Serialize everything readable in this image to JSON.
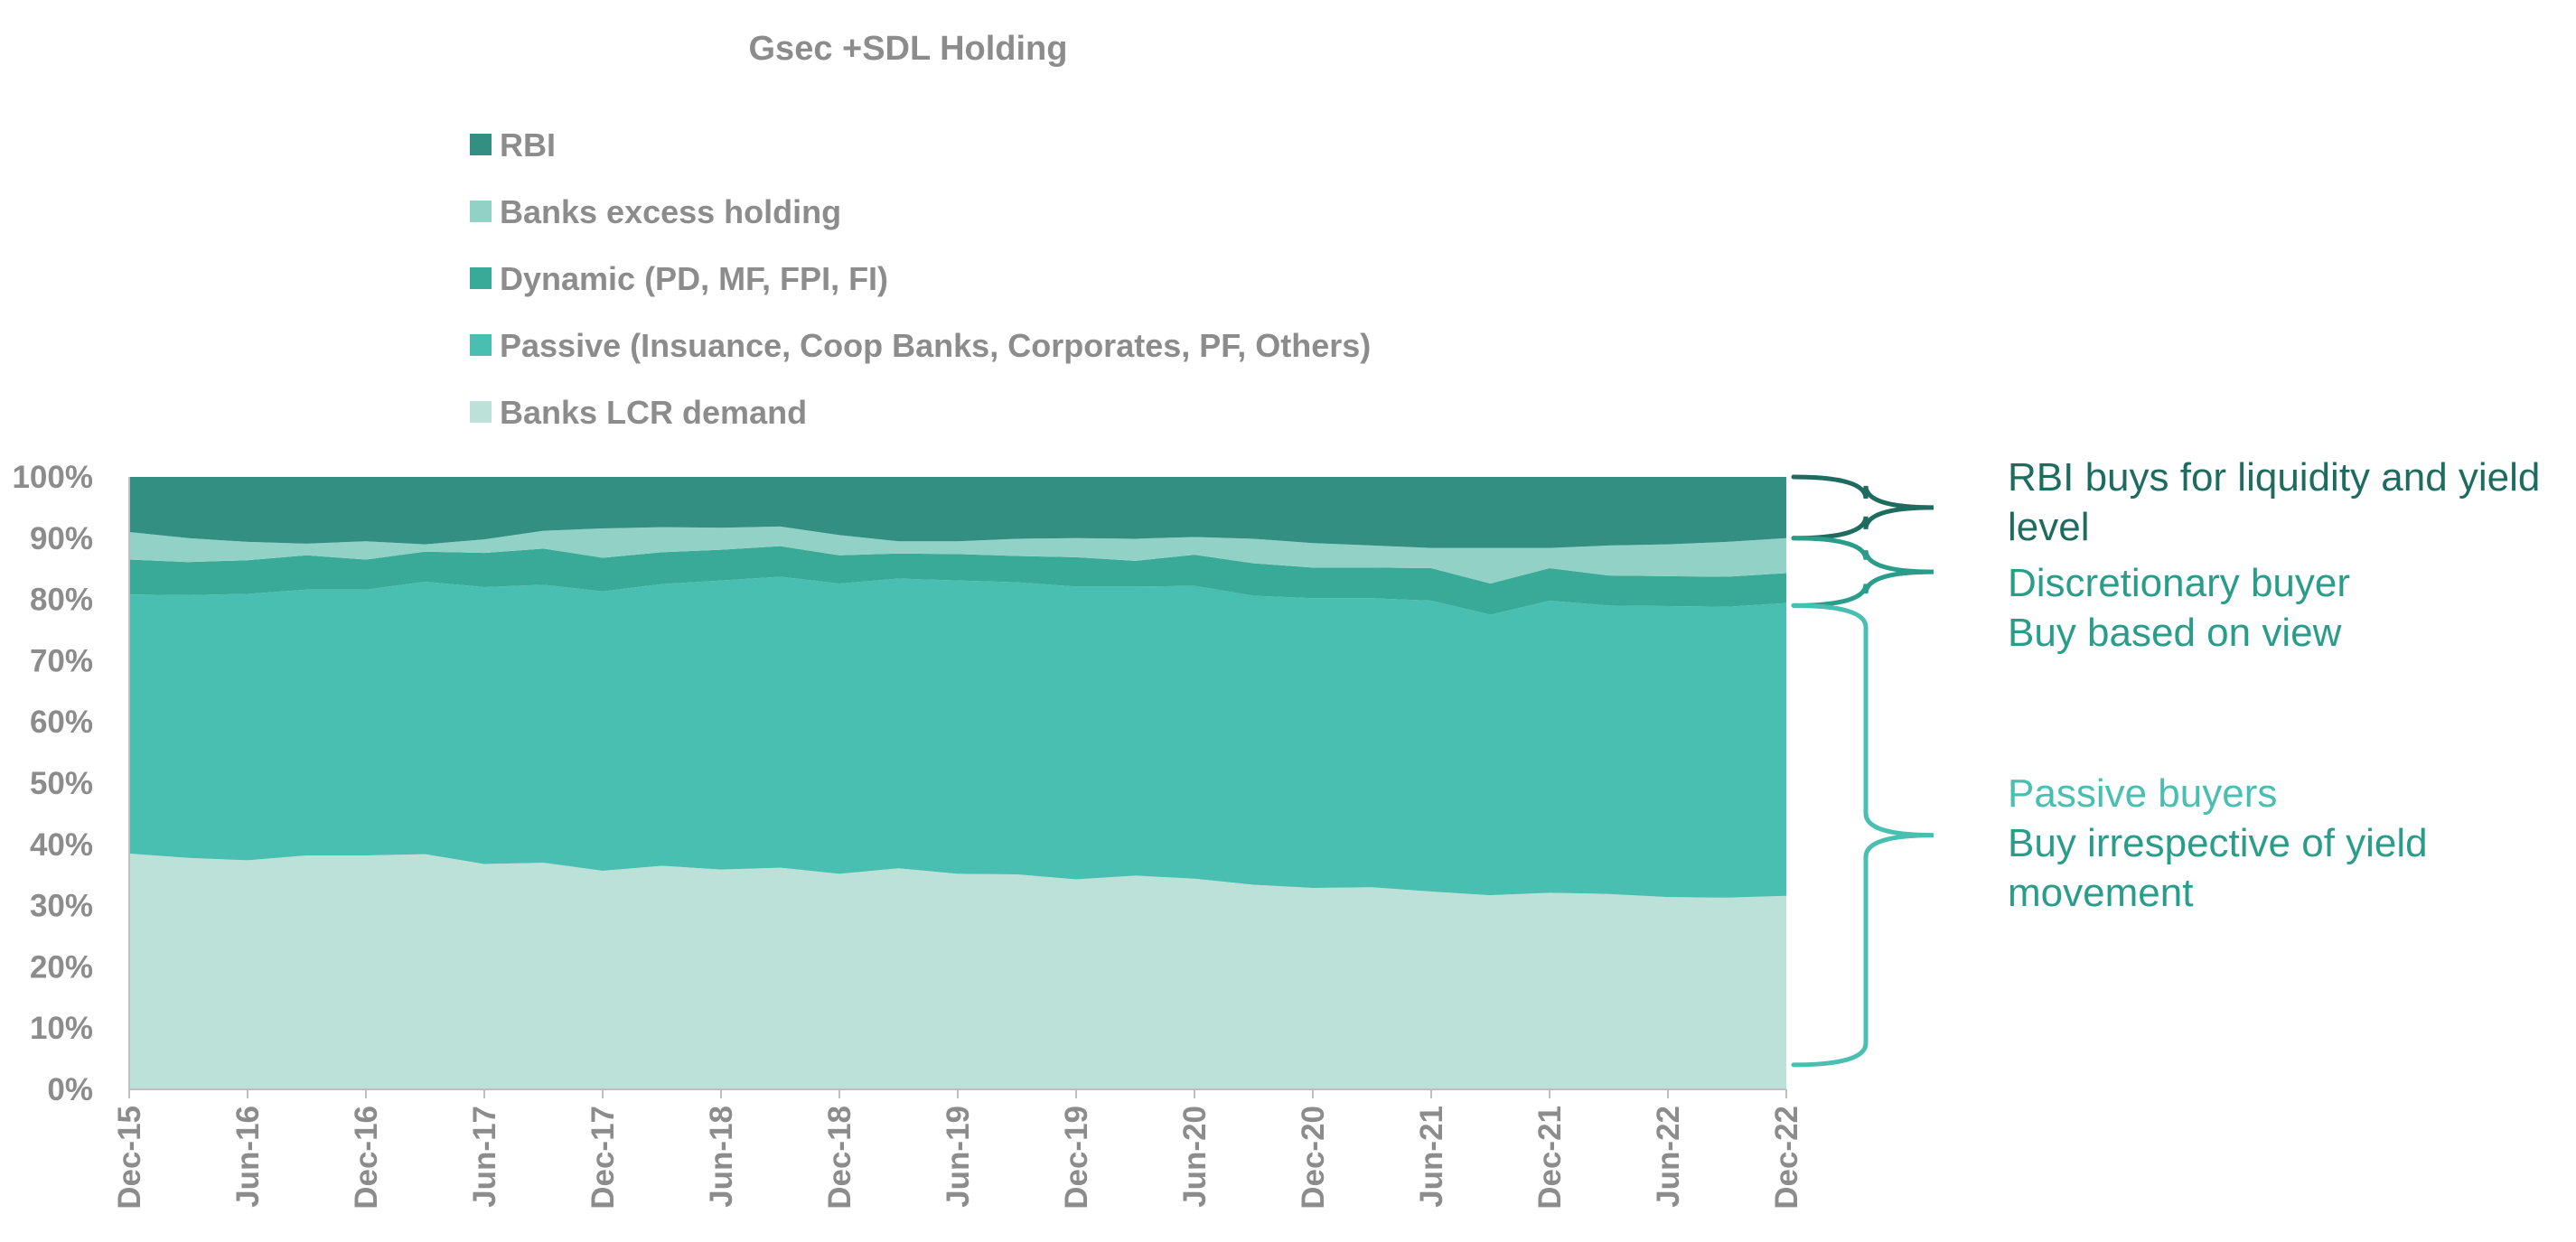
{
  "chart_data": {
    "type": "area",
    "stacked": true,
    "title": "Gsec +SDL Holding",
    "xlabel": "",
    "ylabel": "",
    "ylim": [
      0,
      100
    ],
    "y_ticks": [
      "0%",
      "10%",
      "20%",
      "30%",
      "40%",
      "50%",
      "60%",
      "70%",
      "80%",
      "90%",
      "100%"
    ],
    "x": [
      "Dec-15",
      "Mar-16",
      "Jun-16",
      "Sep-16",
      "Dec-16",
      "Mar-17",
      "Jun-17",
      "Sep-17",
      "Dec-17",
      "Mar-18",
      "Jun-18",
      "Sep-18",
      "Dec-18",
      "Mar-19",
      "Jun-19",
      "Sep-19",
      "Dec-19",
      "Mar-20",
      "Jun-20",
      "Sep-20",
      "Dec-20",
      "Mar-21",
      "Jun-21",
      "Sep-21",
      "Dec-21",
      "Mar-22",
      "Jun-22",
      "Sep-22",
      "Dec-22"
    ],
    "x_tick_labels": [
      "Dec-15",
      "Jun-16",
      "Dec-16",
      "Jun-17",
      "Dec-17",
      "Jun-18",
      "Dec-18",
      "Jun-19",
      "Dec-19",
      "Jun-20",
      "Dec-20",
      "Jun-21",
      "Dec-21",
      "Jun-22",
      "Dec-22"
    ],
    "legend_position": "top",
    "grid": false,
    "series": [
      {
        "name": "Banks LCR demand",
        "color": "#bbe1d8",
        "values": [
          38.5,
          37.8,
          37.4,
          38.2,
          38.2,
          38.4,
          36.8,
          37.0,
          35.7,
          36.5,
          35.9,
          36.2,
          35.2,
          36.1,
          35.2,
          35.1,
          34.3,
          34.9,
          34.4,
          33.4,
          32.9,
          33.0,
          32.3,
          31.7,
          32.1,
          31.9,
          31.4,
          31.3,
          31.6
        ]
      },
      {
        "name": "Passive (Insuance, Coop Banks, Corporates, PF, Others)",
        "color": "#48bfb0",
        "values": [
          42.3,
          42.9,
          43.5,
          43.4,
          43.4,
          44.5,
          45.2,
          45.4,
          45.6,
          46.0,
          47.2,
          47.5,
          47.4,
          47.3,
          47.9,
          47.7,
          47.8,
          47.2,
          47.8,
          47.2,
          47.3,
          47.2,
          47.5,
          45.8,
          47.7,
          47.1,
          47.5,
          47.5,
          47.8
        ]
      },
      {
        "name": "Dynamic (PD, MF, FPI, FI)",
        "color": "#3aaa98",
        "values": [
          5.7,
          5.4,
          5.5,
          5.6,
          4.9,
          4.9,
          5.6,
          5.9,
          5.5,
          5.2,
          5.0,
          5.0,
          4.6,
          4.1,
          4.3,
          4.3,
          4.8,
          4.2,
          5.1,
          5.3,
          5.0,
          5.0,
          5.3,
          5.1,
          5.3,
          4.9,
          4.9,
          4.9,
          4.9
        ]
      },
      {
        "name": "Banks excess holding",
        "color": "#92d2c6",
        "values": [
          4.5,
          3.9,
          3.0,
          1.9,
          3.0,
          1.2,
          2.2,
          2.9,
          4.8,
          4.1,
          3.6,
          3.2,
          3.3,
          2.0,
          2.1,
          2.8,
          3.1,
          3.6,
          2.9,
          4.0,
          4.0,
          3.6,
          3.3,
          5.8,
          3.3,
          4.9,
          5.2,
          5.7,
          5.7
        ]
      },
      {
        "name": "RBI",
        "color": "#328f82",
        "values": [
          9.0,
          10.0,
          10.6,
          10.9,
          10.5,
          11.0,
          10.2,
          8.8,
          8.4,
          8.2,
          8.3,
          8.1,
          9.5,
          10.5,
          10.5,
          10.1,
          10.0,
          10.1,
          9.8,
          10.1,
          10.8,
          11.2,
          11.6,
          11.6,
          11.6,
          11.2,
          11.0,
          10.6,
          10.0
        ]
      }
    ],
    "legend_order": [
      "RBI",
      "Banks excess holding",
      "Dynamic (PD, MF, FPI, FI)",
      "Passive (Insuance, Coop Banks, Corporates, PF, Others)",
      "Banks LCR demand"
    ],
    "annotations": [
      {
        "group": "rbi",
        "color": "#1e6b5f",
        "lines": [
          "RBI buys for liquidity and yield",
          "level"
        ],
        "span": [
          90,
          100
        ]
      },
      {
        "group": "dynamic",
        "color": "#2a9d8a",
        "lines": [
          "Discretionary buyer",
          "Buy based on view"
        ],
        "span": [
          79,
          90
        ]
      },
      {
        "group": "passive",
        "color": "#48bfb0",
        "lines": [
          "Passive buyers"
        ],
        "span": [
          4,
          79
        ]
      },
      {
        "group": "passive-sub",
        "color": "#2a9d8a",
        "lines": [
          "Buy irrespective of yield",
          "movement"
        ]
      }
    ]
  }
}
